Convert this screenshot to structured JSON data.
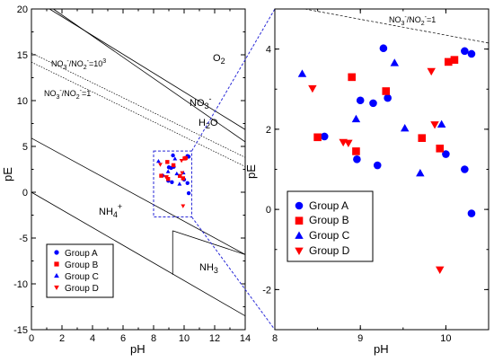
{
  "colors": {
    "group_a": "#0000ff",
    "group_b": "#ff0000",
    "group_c": "#0000ff",
    "group_d": "#ff0000",
    "zoom_box": "#2a2ad8"
  },
  "chart_data": [
    {
      "type": "scatter",
      "xlabel": "pH",
      "ylabel": "pE",
      "xlim": [
        0,
        14
      ],
      "ylim": [
        -15,
        20
      ],
      "x_ticks": [
        "0",
        "2",
        "4",
        "6",
        "8",
        "10",
        "12",
        "14"
      ],
      "y_ticks": [
        "-15",
        "-10",
        "-5",
        "0",
        "5",
        "10",
        "15",
        "20"
      ],
      "region_labels": {
        "o2": "O",
        "o2_sub": "2",
        "no3": "NO",
        "no3_sub": "3",
        "no3_sup": "-",
        "h2o": "H",
        "h2o_sub": "2",
        "h2o_tail": "O",
        "nh4": "NH",
        "nh4_sub": "4",
        "nh4_sup": "+",
        "nh3": "NH",
        "nh3_sub": "3",
        "ratio_1000": "NO3-/NO2-=10^3",
        "ratio_1": "NO3-/NO2-=1"
      },
      "ratio_1000_parts": [
        "NO",
        "3",
        "-",
        "/NO",
        "2",
        "-",
        "=10",
        "3"
      ],
      "ratio_1_parts": [
        "NO",
        "3",
        "-",
        "/NO",
        "2",
        "-",
        "=1"
      ],
      "boundaries": [
        {
          "name": "o2-h2o",
          "points": [
            [
              0.6,
              20.6
            ],
            [
              14,
              6.84
            ]
          ]
        },
        {
          "name": "o2-h2o-lower",
          "points": [
            [
              1.0,
              20.5
            ],
            [
              14,
              5.5
            ]
          ]
        },
        {
          "name": "h2-h2o",
          "points": [
            [
              0,
              5.9
            ],
            [
              14,
              -6.8
            ]
          ]
        },
        {
          "name": "nh4-lower",
          "points": [
            [
              0,
              0
            ],
            [
              14,
              -13.5
            ]
          ]
        },
        {
          "name": "nh4-nh3",
          "points": [
            [
              9.25,
              -4.2
            ],
            [
              9.25,
              -9.0
            ]
          ]
        },
        {
          "name": "nh3-upper",
          "points": [
            [
              9.25,
              -4.2
            ],
            [
              14,
              -6.8
            ]
          ]
        }
      ],
      "ratio_lines": [
        {
          "name": "ratio_1000",
          "points": [
            [
              0,
              15.2
            ],
            [
              14,
              3.8
            ]
          ]
        },
        {
          "name": "ratio_1",
          "points": [
            [
              0,
              14.2
            ],
            [
              14,
              2.8
            ]
          ]
        }
      ],
      "zoom_box": {
        "x": [
          8.0,
          10.5
        ],
        "y": [
          -2.7,
          4.5
        ]
      }
    },
    {
      "type": "scatter",
      "xlabel": "pH",
      "ylabel": "pE",
      "xlim": [
        8,
        10.5
      ],
      "ylim": [
        -3,
        5
      ],
      "x_ticks": [
        "8",
        "9",
        "10"
      ],
      "y_ticks": [
        "-2",
        "0",
        "2",
        "4"
      ],
      "ratio_1_parts": [
        "NO",
        "3",
        "-",
        "/NO",
        "2",
        "-",
        "=1"
      ],
      "ratio_line": {
        "points": [
          [
            8.35,
            5.0
          ],
          [
            10.5,
            4.15
          ]
        ]
      },
      "series": [
        {
          "name": "Group A",
          "marker": "circle",
          "points": [
            [
              8.58,
              1.82
            ],
            [
              8.96,
              1.25
            ],
            [
              9.0,
              2.72
            ],
            [
              9.15,
              2.65
            ],
            [
              9.2,
              1.1
            ],
            [
              9.27,
              4.02
            ],
            [
              9.32,
              2.78
            ],
            [
              10.0,
              1.38
            ],
            [
              10.22,
              1.0
            ],
            [
              10.22,
              3.95
            ],
            [
              10.3,
              3.88
            ],
            [
              10.3,
              -0.1
            ]
          ]
        },
        {
          "name": "Group B",
          "marker": "square",
          "points": [
            [
              8.5,
              1.8
            ],
            [
              8.9,
              3.3
            ],
            [
              8.95,
              1.45
            ],
            [
              9.3,
              2.95
            ],
            [
              9.72,
              1.78
            ],
            [
              9.93,
              1.52
            ],
            [
              10.03,
              3.68
            ],
            [
              10.1,
              3.73
            ]
          ]
        },
        {
          "name": "Group C",
          "marker": "triangle-up",
          "points": [
            [
              8.32,
              3.38
            ],
            [
              8.95,
              2.25
            ],
            [
              9.4,
              3.65
            ],
            [
              9.52,
              2.02
            ],
            [
              9.7,
              0.9
            ],
            [
              9.95,
              2.12
            ]
          ]
        },
        {
          "name": "Group D",
          "marker": "triangle-down",
          "points": [
            [
              8.44,
              3.02
            ],
            [
              8.8,
              1.68
            ],
            [
              8.86,
              1.66
            ],
            [
              9.83,
              3.45
            ],
            [
              9.87,
              2.12
            ],
            [
              9.93,
              -1.5
            ]
          ]
        }
      ]
    }
  ]
}
